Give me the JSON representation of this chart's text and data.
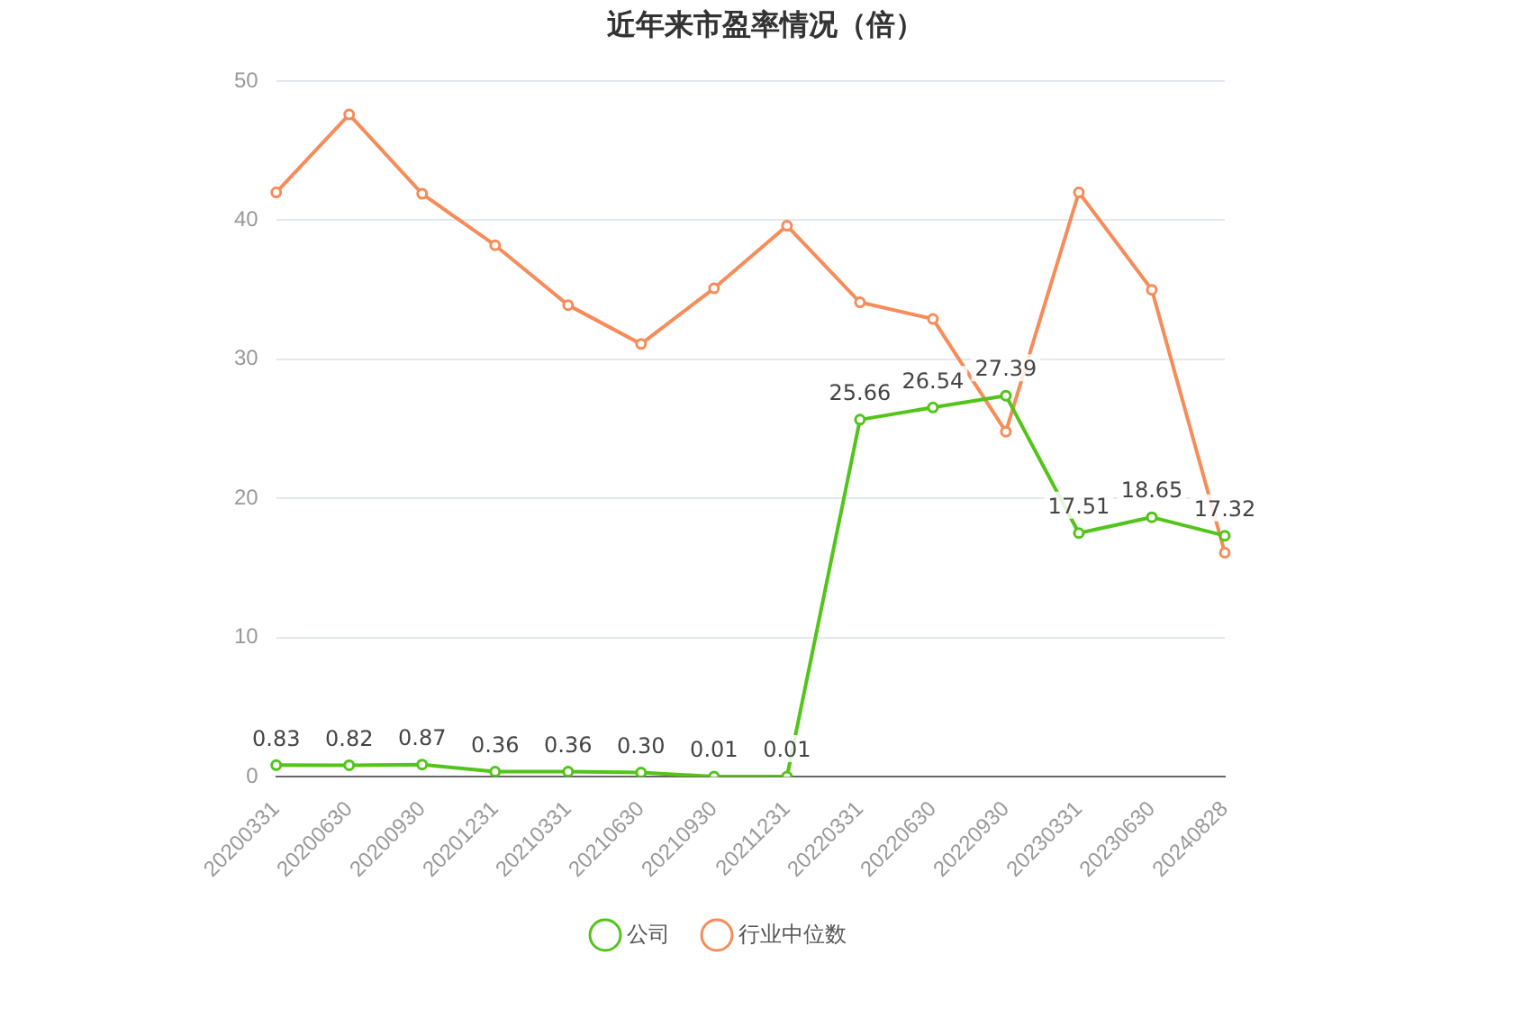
{
  "chart_data": {
    "type": "line",
    "title": "近年来市盈率情况（倍）",
    "categories": [
      "20200331",
      "20200630",
      "20200930",
      "20201231",
      "20210331",
      "20210630",
      "20210930",
      "20211231",
      "20220331",
      "20220630",
      "20220930",
      "20230331",
      "20230630",
      "20240828"
    ],
    "series": [
      {
        "name": "公司",
        "color": "#52c41a",
        "values": [
          0.83,
          0.82,
          0.87,
          0.36,
          0.36,
          0.3,
          0.01,
          0.01,
          25.66,
          26.54,
          27.39,
          17.51,
          18.65,
          17.32
        ],
        "value_labels": [
          "0.83",
          "0.82",
          "0.87",
          "0.36",
          "0.36",
          "0.30",
          "0.01",
          "0.01",
          "25.66",
          "26.54",
          "27.39",
          "17.51",
          "18.65",
          "17.32"
        ]
      },
      {
        "name": "行业中位数",
        "color": "#f58c5a",
        "values": [
          42.0,
          47.6,
          41.9,
          38.2,
          33.9,
          31.1,
          35.1,
          39.6,
          34.1,
          32.9,
          24.8,
          42.0,
          35.0,
          16.1
        ]
      }
    ],
    "ylim": [
      0,
      50
    ],
    "yticks": [
      0,
      10,
      20,
      30,
      40,
      50
    ],
    "grid": "y",
    "legend": "bottom",
    "marker": "circle",
    "line_style": "solid"
  }
}
